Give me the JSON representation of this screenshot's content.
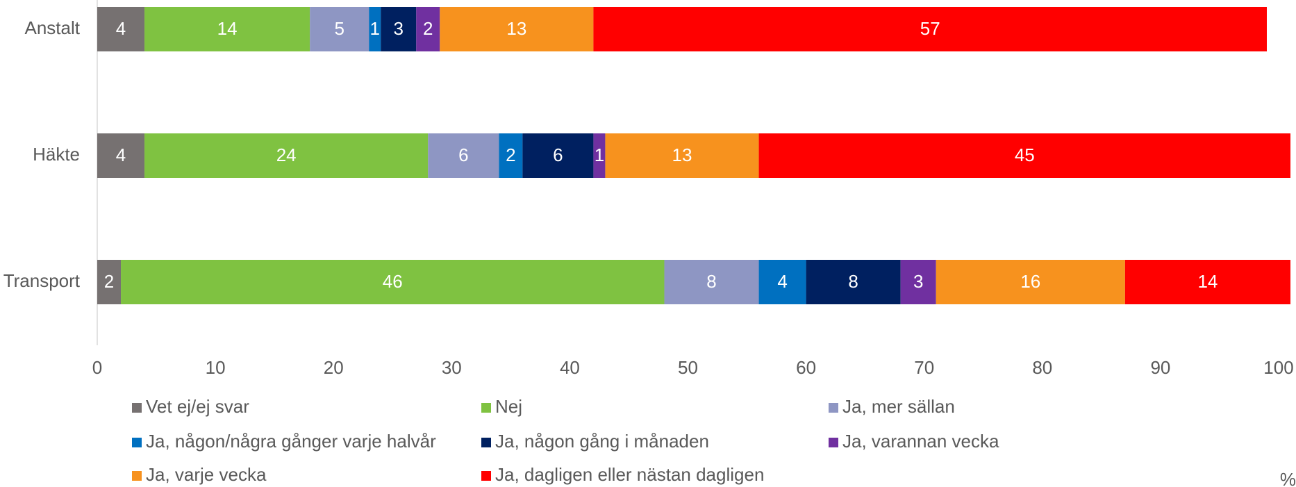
{
  "chart_data": {
    "type": "bar",
    "orientation": "horizontal",
    "stacked": true,
    "categories": [
      "Anstalt",
      "Häkte",
      "Transport"
    ],
    "series": [
      {
        "name": "Vet ej/ej svar",
        "color": "#767171",
        "values": [
          4,
          4,
          2
        ]
      },
      {
        "name": "Nej",
        "color": "#7fc241",
        "values": [
          14,
          24,
          46
        ]
      },
      {
        "name": "Ja, mer sällan",
        "color": "#8e96c3",
        "values": [
          5,
          6,
          8
        ]
      },
      {
        "name": "Ja, någon/några gånger varje halvår",
        "color": "#0070c0",
        "values": [
          1,
          2,
          4
        ]
      },
      {
        "name": "Ja, någon gång i månaden",
        "color": "#002060",
        "values": [
          3,
          6,
          8
        ]
      },
      {
        "name": "Ja, varannan vecka",
        "color": "#7030a0",
        "values": [
          2,
          1,
          3
        ]
      },
      {
        "name": "Ja, varje vecka",
        "color": "#f7921e",
        "values": [
          13,
          13,
          16
        ]
      },
      {
        "name": "Ja, dagligen eller nästan dagligen",
        "color": "#ff0000",
        "values": [
          57,
          45,
          14
        ]
      }
    ],
    "xlim": [
      0,
      100
    ],
    "xticks": [
      0,
      10,
      20,
      30,
      40,
      50,
      60,
      70,
      80,
      90,
      100
    ],
    "x_label": "%",
    "legend": "bottom"
  }
}
